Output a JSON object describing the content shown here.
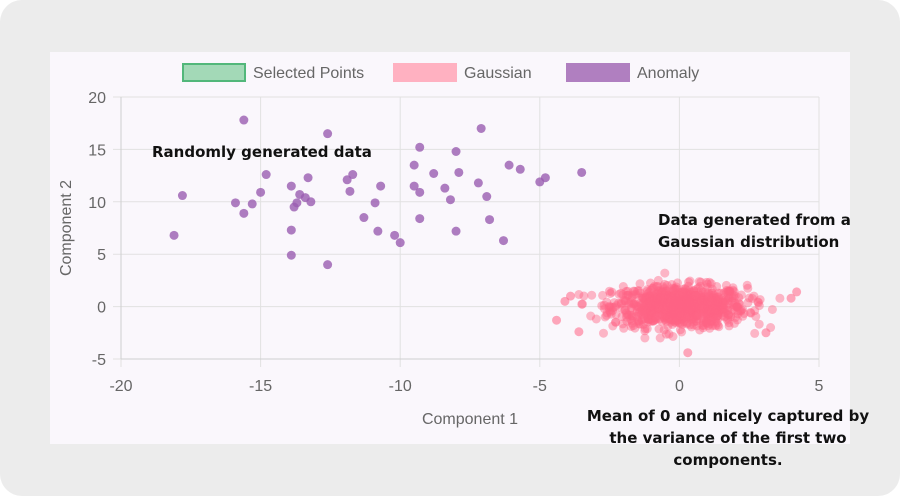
{
  "chart_data": {
    "type": "scatter",
    "xlabel": "Component 1",
    "ylabel": "Component 2",
    "xlim": [
      -20,
      5
    ],
    "ylim": [
      -5,
      20
    ],
    "xticks": [
      "-20",
      "-15",
      "-10",
      "-5",
      "0",
      "5"
    ],
    "yticks": [
      "20",
      "15",
      "10",
      "5",
      "0",
      "-5"
    ],
    "grid": true,
    "legend_position": "top",
    "legend": [
      {
        "name": "Selected Points",
        "color": "#a3d9b7",
        "border": "#52b77a"
      },
      {
        "name": "Gaussian",
        "color": "#ffb1c1",
        "border": "#ffb1c1"
      },
      {
        "name": "Anomaly",
        "color": "#b07fc0",
        "border": "#b07fc0"
      }
    ],
    "series": [
      {
        "name": "Anomaly",
        "color": "#9a5cb0",
        "points": [
          [
            -15.6,
            17.8
          ],
          [
            -12.6,
            16.5
          ],
          [
            -7.1,
            17.0
          ],
          [
            -9.3,
            15.2
          ],
          [
            -8.0,
            14.8
          ],
          [
            -14.8,
            12.6
          ],
          [
            -13.3,
            12.3
          ],
          [
            -11.7,
            12.6
          ],
          [
            -11.9,
            12.1
          ],
          [
            -8.8,
            12.7
          ],
          [
            -7.9,
            12.8
          ],
          [
            -6.1,
            13.5
          ],
          [
            -5.7,
            13.1
          ],
          [
            -9.5,
            13.5
          ],
          [
            -3.5,
            12.8
          ],
          [
            -4.8,
            12.3
          ],
          [
            -5.0,
            11.9
          ],
          [
            -7.2,
            11.8
          ],
          [
            -10.7,
            11.5
          ],
          [
            -13.9,
            11.5
          ],
          [
            -17.8,
            10.6
          ],
          [
            -15.0,
            10.9
          ],
          [
            -13.6,
            10.7
          ],
          [
            -13.4,
            10.4
          ],
          [
            -11.8,
            11.0
          ],
          [
            -9.5,
            11.5
          ],
          [
            -9.3,
            10.9
          ],
          [
            -8.4,
            11.3
          ],
          [
            -6.9,
            10.5
          ],
          [
            -15.9,
            9.9
          ],
          [
            -15.3,
            9.8
          ],
          [
            -13.7,
            9.9
          ],
          [
            -13.8,
            9.5
          ],
          [
            -13.2,
            10.0
          ],
          [
            -8.2,
            10.2
          ],
          [
            -10.9,
            9.9
          ],
          [
            -15.6,
            8.9
          ],
          [
            -11.3,
            8.5
          ],
          [
            -9.3,
            8.4
          ],
          [
            -6.8,
            8.3
          ],
          [
            -13.9,
            7.3
          ],
          [
            -10.8,
            7.2
          ],
          [
            -10.2,
            6.8
          ],
          [
            -10.0,
            6.1
          ],
          [
            -8.0,
            7.2
          ],
          [
            -18.1,
            6.8
          ],
          [
            -6.3,
            6.3
          ],
          [
            -13.9,
            4.9
          ],
          [
            -12.6,
            4.0
          ]
        ]
      },
      {
        "name": "Gaussian",
        "color": "#ff6384",
        "distribution": {
          "mean": [
            0,
            0
          ],
          "sd": [
            1.2,
            1.0
          ],
          "count": 900
        },
        "outliers": [
          [
            -4.4,
            -1.3
          ],
          [
            -3.6,
            -2.4
          ],
          [
            -4.1,
            0.5
          ],
          [
            4.2,
            1.4
          ],
          [
            4.0,
            0.8
          ],
          [
            0.3,
            -4.4
          ],
          [
            3.1,
            -2.5
          ],
          [
            -3.9,
            1.0
          ]
        ]
      }
    ],
    "annotations": [
      {
        "text": "Randomly generated data"
      },
      {
        "text": "Data generated from a Gaussian distribution"
      },
      {
        "text": "Mean of 0 and nicely captured by the variance of the first two components."
      }
    ]
  }
}
